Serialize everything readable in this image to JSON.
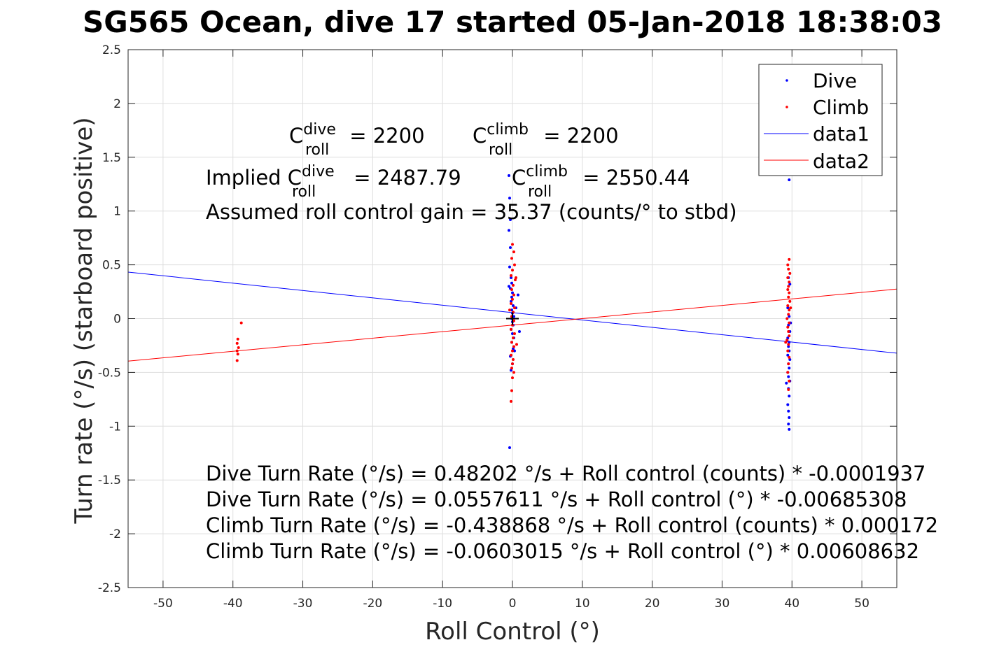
{
  "chart_data": {
    "type": "scatter",
    "title": "SG565 Ocean, dive 17 started 05-Jan-2018 18:38:03",
    "xlabel": "Roll Control (°)",
    "ylabel": "Turn rate (°/s) (starboard positive)",
    "xlim": [
      -55,
      55
    ],
    "ylim": [
      -2.5,
      2.5
    ],
    "xticks": [
      -50,
      -40,
      -30,
      -20,
      -10,
      0,
      10,
      20,
      30,
      40,
      50
    ],
    "xtick_labels": [
      "-50",
      "-40",
      "-30",
      "-20",
      "-10",
      "0",
      "10",
      "20",
      "30",
      "40",
      "50"
    ],
    "yticks": [
      -2.5,
      -2,
      -1.5,
      -1,
      -0.5,
      0,
      0.5,
      1,
      1.5,
      2,
      2.5
    ],
    "ytick_labels": [
      "-2.5",
      "-2",
      "-1.5",
      "-1",
      "-0.5",
      "0",
      "0.5",
      "1",
      "1.5",
      "2",
      "2.5"
    ],
    "grid": true,
    "legend_position": "top-right",
    "colors": {
      "dive": "#0000ff",
      "climb": "#ff0000",
      "center_marker": "#000000"
    },
    "series": [
      {
        "name": "Dive",
        "kind": "points",
        "color": "#0000ff",
        "points": [
          [
            -0.5,
            1.33
          ],
          [
            -0.4,
            1.12
          ],
          [
            -0.3,
            0.92
          ],
          [
            -0.5,
            0.82
          ],
          [
            -0.3,
            0.66
          ],
          [
            -0.4,
            0.48
          ],
          [
            -0.2,
            0.38
          ],
          [
            -0.1,
            0.33
          ],
          [
            -0.3,
            0.28
          ],
          [
            0.0,
            0.24
          ],
          [
            -0.1,
            0.2
          ],
          [
            -0.2,
            0.16
          ],
          [
            0.1,
            0.12
          ],
          [
            -0.1,
            0.08
          ],
          [
            0.0,
            0.05
          ],
          [
            0.2,
            0.02
          ],
          [
            -0.1,
            0.0
          ],
          [
            0.0,
            -0.03
          ],
          [
            0.1,
            -0.06
          ],
          [
            -0.2,
            -0.1
          ],
          [
            0.0,
            -0.14
          ],
          [
            0.2,
            -0.18
          ],
          [
            -0.1,
            -0.22
          ],
          [
            0.1,
            -0.28
          ],
          [
            -0.3,
            -0.35
          ],
          [
            0.0,
            -0.42
          ],
          [
            -0.2,
            -0.48
          ],
          [
            0.3,
            -0.3
          ],
          [
            -0.4,
            -1.2
          ],
          [
            0.5,
            0.1
          ],
          [
            1.0,
            -0.12
          ],
          [
            0.8,
            0.22
          ],
          [
            -0.5,
            0.3
          ],
          [
            39.6,
            1.29
          ],
          [
            39.5,
            0.38
          ],
          [
            39.7,
            0.32
          ],
          [
            39.4,
            0.1
          ],
          [
            39.6,
            0.02
          ],
          [
            39.5,
            -0.06
          ],
          [
            39.7,
            -0.12
          ],
          [
            39.4,
            -0.18
          ],
          [
            39.6,
            -0.22
          ],
          [
            39.5,
            -0.26
          ],
          [
            39.6,
            -0.3
          ],
          [
            39.4,
            -0.34
          ],
          [
            39.7,
            -0.38
          ],
          [
            39.5,
            -0.42
          ],
          [
            39.6,
            -0.46
          ],
          [
            39.4,
            -0.5
          ],
          [
            39.5,
            -0.54
          ],
          [
            39.7,
            -0.58
          ],
          [
            39.2,
            -0.6
          ],
          [
            39.5,
            -0.65
          ],
          [
            39.6,
            -0.72
          ],
          [
            39.4,
            -0.8
          ],
          [
            39.5,
            -0.86
          ],
          [
            39.6,
            -0.92
          ],
          [
            39.5,
            -0.98
          ],
          [
            39.6,
            -1.03
          ],
          [
            39.8,
            -0.04
          ],
          [
            39.3,
            -0.2
          ]
        ]
      },
      {
        "name": "Climb",
        "kind": "points",
        "color": "#ff0000",
        "points": [
          [
            -39.3,
            -0.19
          ],
          [
            -39.4,
            -0.23
          ],
          [
            -39.2,
            -0.27
          ],
          [
            -39.4,
            -0.3
          ],
          [
            -39.3,
            -0.33
          ],
          [
            -39.4,
            -0.39
          ],
          [
            -38.8,
            -0.04
          ],
          [
            0.0,
            0.69
          ],
          [
            0.2,
            0.62
          ],
          [
            -0.1,
            0.56
          ],
          [
            0.3,
            0.5
          ],
          [
            0.0,
            0.45
          ],
          [
            -0.2,
            0.4
          ],
          [
            0.4,
            0.36
          ],
          [
            0.1,
            0.31
          ],
          [
            -0.1,
            0.27
          ],
          [
            0.2,
            0.22
          ],
          [
            0.0,
            0.18
          ],
          [
            -0.2,
            0.14
          ],
          [
            0.3,
            0.1
          ],
          [
            0.1,
            0.06
          ],
          [
            -0.1,
            0.02
          ],
          [
            0.2,
            -0.02
          ],
          [
            0.0,
            -0.06
          ],
          [
            -0.2,
            -0.1
          ],
          [
            0.3,
            -0.14
          ],
          [
            0.1,
            -0.18
          ],
          [
            -0.1,
            -0.22
          ],
          [
            0.2,
            -0.26
          ],
          [
            0.0,
            -0.3
          ],
          [
            -0.2,
            -0.34
          ],
          [
            0.1,
            -0.38
          ],
          [
            0.0,
            -0.42
          ],
          [
            -0.1,
            -0.46
          ],
          [
            0.2,
            -0.5
          ],
          [
            0.0,
            -0.55
          ],
          [
            -0.1,
            -0.67
          ],
          [
            -0.2,
            -0.77
          ],
          [
            0.5,
            0.38
          ],
          [
            -0.4,
            0.08
          ],
          [
            0.6,
            -0.24
          ],
          [
            39.6,
            0.55
          ],
          [
            39.4,
            0.5
          ],
          [
            39.5,
            0.46
          ],
          [
            39.7,
            0.42
          ],
          [
            39.4,
            0.38
          ],
          [
            39.6,
            0.34
          ],
          [
            39.5,
            0.3
          ],
          [
            39.4,
            0.27
          ],
          [
            39.6,
            0.24
          ],
          [
            39.5,
            0.2
          ],
          [
            39.7,
            0.16
          ],
          [
            39.4,
            0.12
          ],
          [
            39.6,
            0.08
          ],
          [
            39.5,
            0.04
          ],
          [
            39.3,
            0.0
          ],
          [
            39.6,
            -0.04
          ],
          [
            39.4,
            -0.08
          ],
          [
            39.5,
            -0.12
          ],
          [
            39.6,
            -0.16
          ],
          [
            39.3,
            -0.2
          ],
          [
            39.5,
            -0.24
          ],
          [
            39.4,
            -0.3
          ],
          [
            39.6,
            -0.36
          ],
          [
            39.5,
            -0.42
          ],
          [
            39.4,
            -0.5
          ],
          [
            39.6,
            -0.58
          ],
          [
            39.5,
            -0.66
          ],
          [
            39.1,
            -0.22
          ],
          [
            39.8,
            0.1
          ]
        ]
      },
      {
        "name": "data1",
        "kind": "line",
        "color": "#0000ff",
        "points": [
          [
            -55,
            0.4327
          ],
          [
            55,
            -0.3211
          ]
        ]
      },
      {
        "name": "data2",
        "kind": "line",
        "color": "#ff0000",
        "points": [
          [
            -55,
            -0.3951
          ],
          [
            55,
            0.2745
          ]
        ]
      }
    ],
    "center_marker": {
      "symbol": "+",
      "x": 0,
      "y": 0
    },
    "legend": [
      "Dive",
      "Climb",
      "data1",
      "data2"
    ],
    "annotations": {
      "c_dive": {
        "base": "C",
        "sup": "dive",
        "sub": "roll",
        "rest": " = 2200"
      },
      "c_climb": {
        "base": "C",
        "sup": "climb",
        "sub": "roll",
        "rest": " = 2200"
      },
      "implied_prefix": "Implied ",
      "implied_dive": {
        "base": "C",
        "sup": "dive",
        "sub": "roll",
        "rest": " = 2487.79"
      },
      "implied_climb": {
        "base": "C",
        "sup": "climb",
        "sub": "roll",
        "rest": " = 2550.44"
      },
      "gain": "Assumed roll control gain = 35.37 (counts/° to stbd)",
      "equations": [
        "Dive Turn Rate (°/s) = 0.48202 °/s + Roll control (counts) * -0.0001937",
        "Dive Turn Rate (°/s) = 0.0557611 °/s + Roll control (°) * -0.00685308",
        "Climb Turn Rate (°/s) = -0.438868 °/s + Roll control (counts) * 0.000172",
        "Climb Turn Rate (°/s) = -0.0603015 °/s + Roll control (°) * 0.00608632"
      ]
    }
  }
}
